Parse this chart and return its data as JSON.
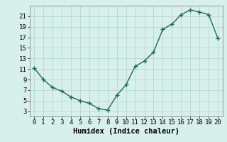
{
  "x": [
    0,
    1,
    2,
    3,
    4,
    5,
    6,
    7,
    8,
    9,
    10,
    11,
    12,
    13,
    14,
    15,
    16,
    17,
    18,
    19,
    20
  ],
  "y": [
    11.2,
    9.0,
    7.5,
    6.8,
    5.7,
    5.0,
    4.5,
    3.5,
    3.2,
    6.0,
    8.0,
    11.5,
    12.5,
    14.2,
    18.5,
    19.5,
    21.3,
    22.2,
    21.8,
    21.3,
    16.8
  ],
  "line_color": "#1a6b5a",
  "marker_color": "#1a6b5a",
  "bg_color": "#d8f0eb",
  "grid_color": "#b8d8cc",
  "xlabel": "Humidex (Indice chaleur)",
  "xlim": [
    -0.5,
    20.5
  ],
  "ylim": [
    2,
    23
  ],
  "xticks": [
    0,
    1,
    2,
    3,
    4,
    5,
    6,
    7,
    8,
    9,
    10,
    11,
    12,
    13,
    14,
    15,
    16,
    17,
    18,
    19,
    20
  ],
  "yticks": [
    3,
    5,
    7,
    9,
    11,
    13,
    15,
    17,
    19,
    21
  ],
  "tick_fontsize": 6.5,
  "xlabel_fontsize": 7.5,
  "linewidth": 1.0,
  "markersize": 2.8
}
